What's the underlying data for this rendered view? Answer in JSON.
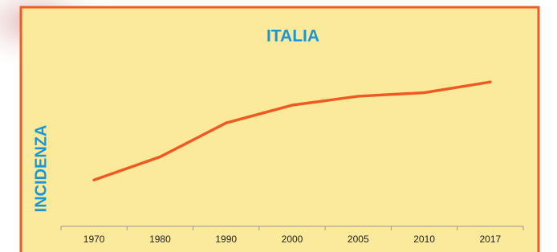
{
  "chart_data": {
    "type": "line",
    "title": "ITALIA",
    "y_label": "INCIDENZA",
    "categories": [
      "1970",
      "1980",
      "1990",
      "2000",
      "2005",
      "2010",
      "2017"
    ],
    "values": [
      26,
      39,
      58,
      68,
      73,
      75,
      81
    ],
    "color": "#f05a22",
    "ylim": [
      0,
      100
    ]
  }
}
